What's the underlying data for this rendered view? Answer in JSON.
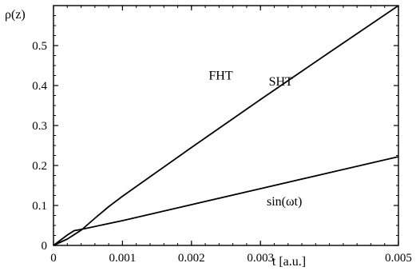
{
  "chart_data": {
    "type": "line",
    "title": "",
    "xlabel": "t [a.u.]",
    "ylabel": "ρ(z)",
    "xlim": [
      0,
      0.005
    ],
    "ylim": [
      0,
      0.6
    ],
    "x_ticks": [
      "0",
      "0.001",
      "0.002",
      "0.003",
      "0.005"
    ],
    "y_ticks": [
      "0",
      "0.1",
      "0.2",
      "0.3",
      "0.4",
      "0.5"
    ],
    "grid": false,
    "series": [
      {
        "x": [
          0,
          0.0002,
          0.0004,
          0.0006,
          0.0008,
          0.001,
          0.002,
          0.003,
          0.004,
          0.005
        ],
        "y": [
          0,
          0.016,
          0.038,
          0.068,
          0.097,
          0.123,
          0.245,
          0.365,
          0.483,
          0.6
        ]
      },
      {
        "x": [
          0,
          0.0002,
          0.0003,
          0.0004,
          0.001,
          0.002,
          0.003,
          0.004,
          0.005
        ],
        "y": [
          0,
          0.026,
          0.037,
          0.04,
          0.062,
          0.102,
          0.142,
          0.182,
          0.222
        ]
      }
    ],
    "annotations": [
      {
        "text": "FHT",
        "x": 0.00225,
        "y": 0.415
      },
      {
        "text": "SHT",
        "x": 0.00312,
        "y": 0.4
      },
      {
        "text": "sin(ωt)",
        "x": 0.00309,
        "y": 0.1
      }
    ]
  }
}
